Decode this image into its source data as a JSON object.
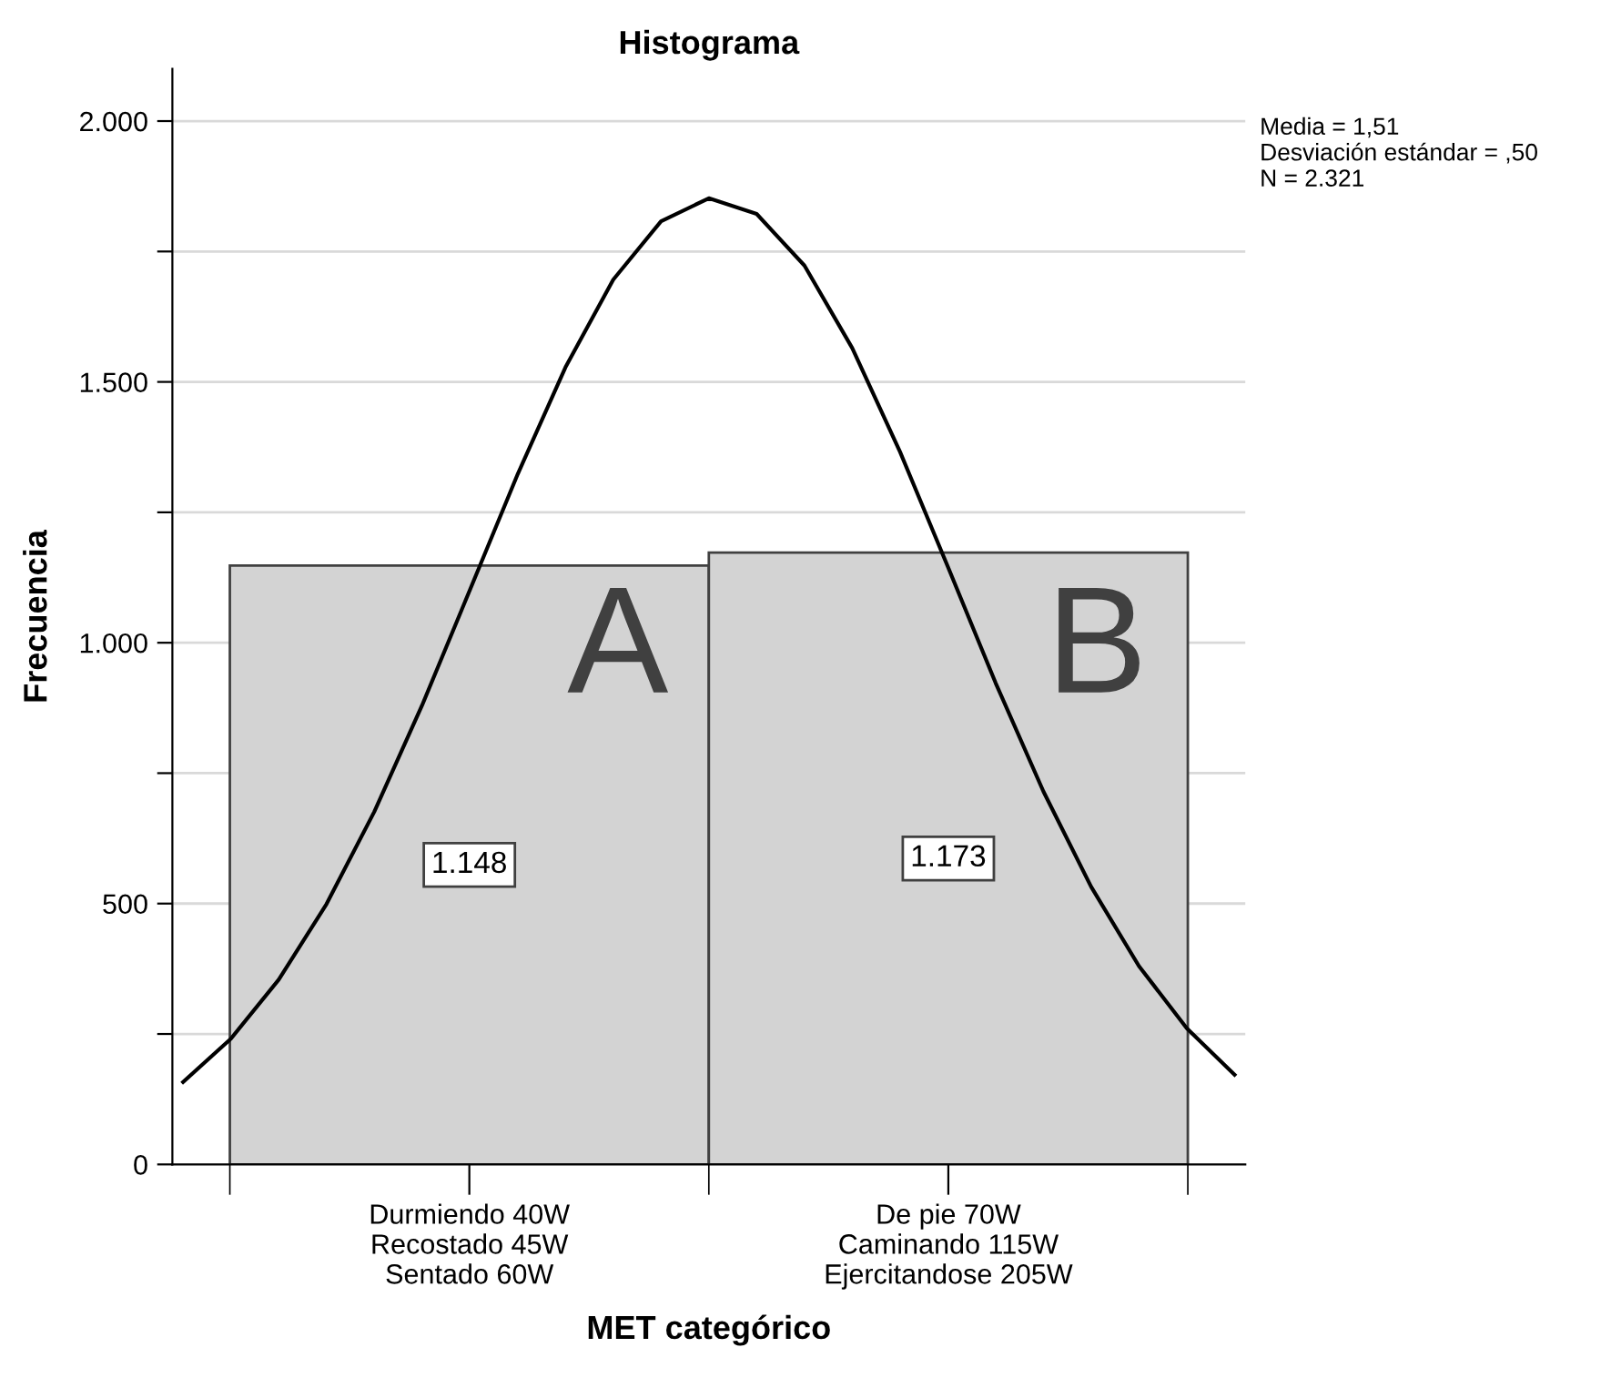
{
  "chart_data": [
    {
      "type": "bar",
      "title": "Histograma",
      "xlabel": "MET categórico",
      "ylabel": "Frecuencia",
      "categories": [
        "Durmiendo 40W\nRecostado 45W\nSentado 60W",
        "De pie 70W\nCaminando 115W\nEjercitandose 205W"
      ],
      "series": [
        {
          "color": "#d3d3d3",
          "values": [
            1148,
            1173
          ],
          "value_labels": [
            "1.148",
            "1.173"
          ]
        }
      ],
      "ylim": [
        0,
        2100
      ],
      "yticks": [
        0,
        {
          "value": 250,
          "label": null
        },
        500,
        {
          "value": 750,
          "label": null
        },
        {
          "value": 1000,
          "label": "1.000"
        },
        {
          "value": 1250,
          "label": null
        },
        {
          "value": 1500,
          "label": "1.500"
        },
        {
          "value": 1750,
          "label": null
        },
        {
          "value": 2000,
          "label": "2.000"
        }
      ],
      "grid": "y",
      "annotations": [
        "A",
        "B",
        "Media = 1,51\nDesviación estándar = ,50\nN = 2.321"
      ]
    },
    {
      "type": "line",
      "categories": [
        null,
        null,
        null,
        null,
        null,
        null,
        null,
        null,
        null,
        null,
        null,
        null,
        null,
        null,
        null,
        null,
        null,
        null,
        null,
        null,
        null,
        null,
        null
      ],
      "series": [
        {
          "color": "#000000",
          "values": [
            158,
            241,
            354,
            499,
            676,
            880,
            1101,
            1323,
            1528,
            1696,
            1808,
            1852,
            1822,
            1723,
            1565,
            1366,
            1146,
            923,
            715,
            532,
            380,
            261,
            172
          ]
        }
      ],
      "ylim": [
        0,
        2100
      ],
      "tick_labels": false,
      "marker": "none",
      "line_style": "solid"
    }
  ]
}
